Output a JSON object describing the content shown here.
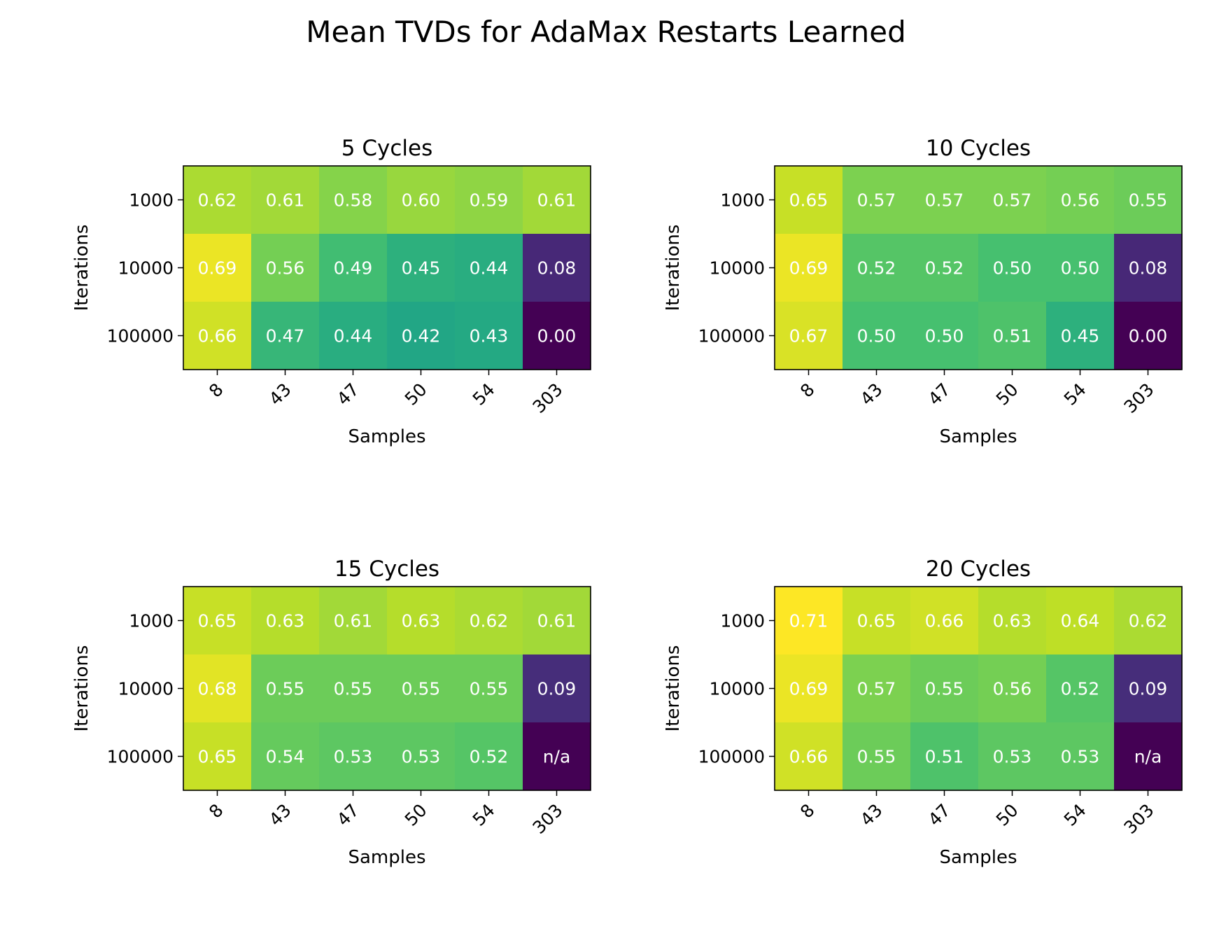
{
  "chart_data": {
    "type": "heatmap",
    "title": "Mean TVDs for AdaMax Restarts Learned",
    "colormap": "viridis",
    "color_range": [
      0.0,
      0.71
    ],
    "xlabel": "Samples",
    "ylabel": "Iterations",
    "x_categories": [
      "8",
      "43",
      "47",
      "50",
      "54",
      "303"
    ],
    "y_categories": [
      "1000",
      "10000",
      "100000"
    ],
    "panels": [
      {
        "title": "5 Cycles",
        "values": [
          [
            0.62,
            0.61,
            0.58,
            0.6,
            0.59,
            0.61
          ],
          [
            0.69,
            0.56,
            0.49,
            0.45,
            0.44,
            0.08
          ],
          [
            0.66,
            0.47,
            0.44,
            0.42,
            0.43,
            0.0
          ]
        ],
        "labels": [
          [
            "0.62",
            "0.61",
            "0.58",
            "0.60",
            "0.59",
            "0.61"
          ],
          [
            "0.69",
            "0.56",
            "0.49",
            "0.45",
            "0.44",
            "0.08"
          ],
          [
            "0.66",
            "0.47",
            "0.44",
            "0.42",
            "0.43",
            "0.00"
          ]
        ]
      },
      {
        "title": "10 Cycles",
        "values": [
          [
            0.65,
            0.57,
            0.57,
            0.57,
            0.56,
            0.55
          ],
          [
            0.69,
            0.52,
            0.52,
            0.5,
            0.5,
            0.08
          ],
          [
            0.67,
            0.5,
            0.5,
            0.51,
            0.45,
            0.0
          ]
        ],
        "labels": [
          [
            "0.65",
            "0.57",
            "0.57",
            "0.57",
            "0.56",
            "0.55"
          ],
          [
            "0.69",
            "0.52",
            "0.52",
            "0.50",
            "0.50",
            "0.08"
          ],
          [
            "0.67",
            "0.50",
            "0.50",
            "0.51",
            "0.45",
            "0.00"
          ]
        ]
      },
      {
        "title": "15 Cycles",
        "values": [
          [
            0.65,
            0.63,
            0.61,
            0.63,
            0.62,
            0.61
          ],
          [
            0.68,
            0.55,
            0.55,
            0.55,
            0.55,
            0.09
          ],
          [
            0.65,
            0.54,
            0.53,
            0.53,
            0.52,
            null
          ]
        ],
        "labels": [
          [
            "0.65",
            "0.63",
            "0.61",
            "0.63",
            "0.62",
            "0.61"
          ],
          [
            "0.68",
            "0.55",
            "0.55",
            "0.55",
            "0.55",
            "0.09"
          ],
          [
            "0.65",
            "0.54",
            "0.53",
            "0.53",
            "0.52",
            "n/a"
          ]
        ]
      },
      {
        "title": "20 Cycles",
        "values": [
          [
            0.71,
            0.65,
            0.66,
            0.63,
            0.64,
            0.62
          ],
          [
            0.69,
            0.57,
            0.55,
            0.56,
            0.52,
            0.09
          ],
          [
            0.66,
            0.55,
            0.51,
            0.53,
            0.53,
            null
          ]
        ],
        "labels": [
          [
            "0.71",
            "0.65",
            "0.66",
            "0.63",
            "0.64",
            "0.62"
          ],
          [
            "0.69",
            "0.57",
            "0.55",
            "0.56",
            "0.52",
            "0.09"
          ],
          [
            "0.66",
            "0.55",
            "0.51",
            "0.53",
            "0.53",
            "n/a"
          ]
        ]
      }
    ]
  }
}
